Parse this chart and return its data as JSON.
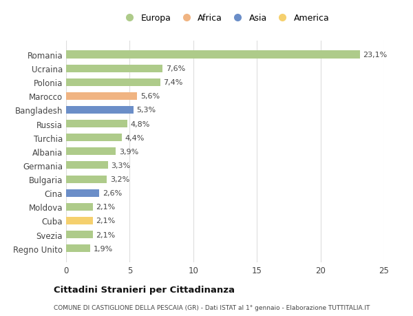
{
  "categories": [
    "Romania",
    "Ucraina",
    "Polonia",
    "Marocco",
    "Bangladesh",
    "Russia",
    "Turchia",
    "Albania",
    "Germania",
    "Bulgaria",
    "Cina",
    "Moldova",
    "Cuba",
    "Svezia",
    "Regno Unito"
  ],
  "values": [
    23.1,
    7.6,
    7.4,
    5.6,
    5.3,
    4.8,
    4.4,
    3.9,
    3.3,
    3.2,
    2.6,
    2.1,
    2.1,
    2.1,
    1.9
  ],
  "labels": [
    "23,1%",
    "7,6%",
    "7,4%",
    "5,6%",
    "5,3%",
    "4,8%",
    "4,4%",
    "3,9%",
    "3,3%",
    "3,2%",
    "2,6%",
    "2,1%",
    "2,1%",
    "2,1%",
    "1,9%"
  ],
  "continents": [
    "Europa",
    "Europa",
    "Europa",
    "Africa",
    "Asia",
    "Europa",
    "Europa",
    "Europa",
    "Europa",
    "Europa",
    "Asia",
    "Europa",
    "America",
    "Europa",
    "Europa"
  ],
  "colors": {
    "Europa": "#aecb8a",
    "Africa": "#f0b482",
    "Asia": "#6b8ec8",
    "America": "#f5d06e"
  },
  "title": "Cittadini Stranieri per Cittadinanza",
  "subtitle": "COMUNE DI CASTIGLIONE DELLA PESCAIA (GR) - Dati ISTAT al 1° gennaio - Elaborazione TUTTITALIA.IT",
  "xlim": [
    0,
    25
  ],
  "xticks": [
    0,
    5,
    10,
    15,
    20,
    25
  ],
  "background_color": "#ffffff",
  "grid_color": "#dddddd",
  "bar_height": 0.55,
  "label_fontsize": 8,
  "tick_fontsize": 8.5,
  "legend_entries": [
    "Europa",
    "Africa",
    "Asia",
    "America"
  ]
}
